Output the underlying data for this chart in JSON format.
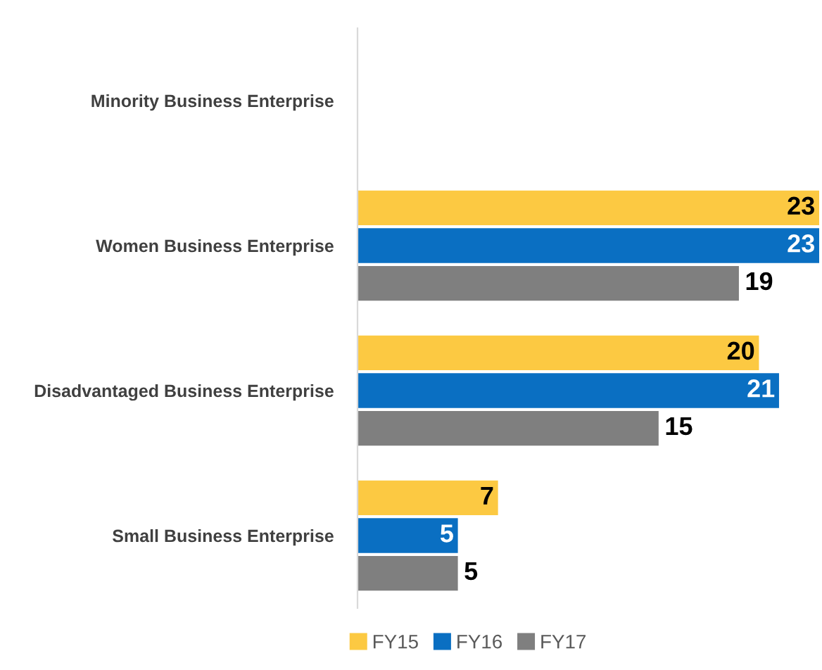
{
  "chart_data": {
    "type": "bar",
    "orientation": "horizontal",
    "categories": [
      "Minority Business Enterprise",
      "Women Business Enterprise",
      "Disadvantaged Business Enterprise",
      "Small Business Enterprise"
    ],
    "series": [
      {
        "name": "FY15",
        "color": "#fcc942",
        "values": [
          null,
          23,
          20,
          7
        ]
      },
      {
        "name": "FY16",
        "color": "#0a6fc2",
        "values": [
          null,
          23,
          21,
          5
        ]
      },
      {
        "name": "FY17",
        "color": "#7f7f7f",
        "values": [
          null,
          19,
          15,
          5
        ]
      }
    ],
    "xlim": [
      0,
      23
    ],
    "data_labels": true,
    "legend": "bottom",
    "grid": false,
    "tick_labels": "y"
  }
}
